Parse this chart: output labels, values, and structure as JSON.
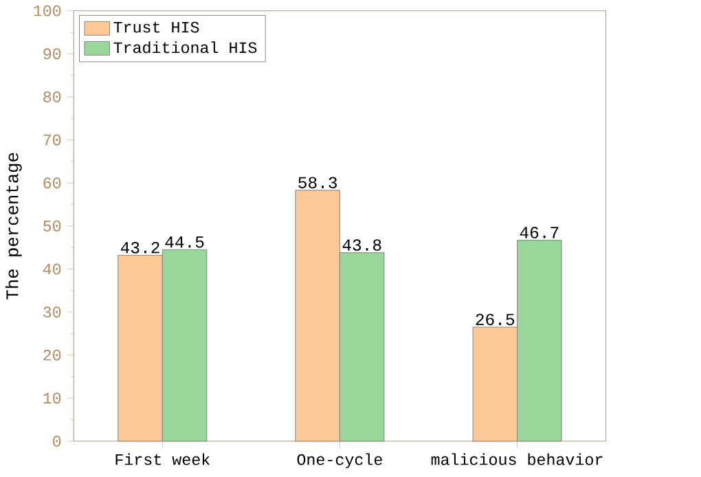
{
  "chart_data": {
    "type": "bar",
    "ylabel": "The percentage",
    "categories": [
      "First week",
      "One-cycle",
      "malicious behavior"
    ],
    "series": [
      {
        "name": "Trust HIS",
        "color": "#fcc896",
        "values": [
          43.2,
          58.3,
          26.5
        ]
      },
      {
        "name": "Traditional HIS",
        "color": "#99d69a",
        "values": [
          44.5,
          43.8,
          46.7
        ]
      }
    ],
    "ylim": [
      0,
      100
    ],
    "yticks": [
      0,
      10,
      20,
      30,
      40,
      50,
      60,
      70,
      80,
      90,
      100
    ],
    "data_labels": true,
    "legend": "top left",
    "grid": false
  }
}
